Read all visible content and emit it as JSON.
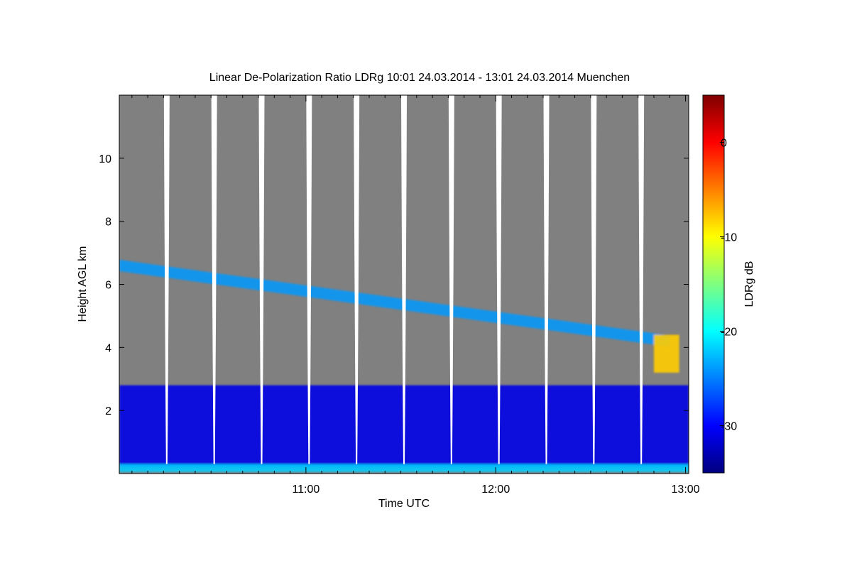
{
  "chart_data": {
    "type": "heatmap",
    "title": "Linear De-Polarization Ratio LDRg   10:01 24.03.2014 - 13:01 24.03.2014 Muenchen",
    "xlabel": "Time UTC",
    "ylabel": "Height AGL km",
    "colorbar_label": "LDRg dB",
    "x_range": [
      "10:01",
      "13:01"
    ],
    "y_range_km": [
      0,
      12
    ],
    "x_ticks": [
      "11:00",
      "12:00",
      "13:00"
    ],
    "y_ticks": [
      2,
      4,
      6,
      8,
      10
    ],
    "y_tick_labels": [
      "2",
      "4",
      "6",
      "8",
      "10"
    ],
    "colorbar_range_db": [
      -35,
      5
    ],
    "colorbar_ticks": [
      0,
      -10,
      -20,
      -30
    ],
    "colorbar_tick_labels": [
      "0",
      "-10",
      "-20",
      "-30"
    ],
    "no_signal_color": "#808080",
    "colormap": "jet",
    "features": [
      {
        "feature": "cirrus layer",
        "time_range": [
          "10:01",
          "12:55"
        ],
        "height_km": [
          6.6,
          4.2
        ],
        "ldr_db": -24
      },
      {
        "feature": "lower cloud layer",
        "time_range": [
          "10:01",
          "13:01"
        ],
        "height_km": [
          0.2,
          2.8
        ],
        "ldr_db": -31
      },
      {
        "feature": "high depolarization patch",
        "time_range": [
          "12:50",
          "12:58"
        ],
        "height_km": [
          3.2,
          4.4
        ],
        "ldr_db": -8
      },
      {
        "feature": "ground clutter band",
        "time_range": [
          "10:01",
          "13:01"
        ],
        "height_km": [
          0.05,
          0.3
        ],
        "ldr_db": -22
      }
    ],
    "scan_gaps": [
      "10:16",
      "10:31",
      "10:46",
      "11:01",
      "11:16",
      "11:31",
      "11:46",
      "12:01",
      "12:16",
      "12:31",
      "12:46"
    ]
  }
}
